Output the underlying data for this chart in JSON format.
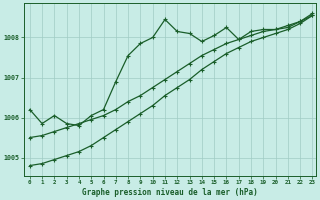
{
  "xlabel": "Graphe pression niveau de la mer (hPa)",
  "background_color": "#c8ece6",
  "grid_color": "#a0ccc4",
  "line_color": "#1a5e2a",
  "xlim": [
    -0.5,
    23.3
  ],
  "ylim": [
    1004.55,
    1008.85
  ],
  "yticks": [
    1005,
    1006,
    1007,
    1008
  ],
  "xticks": [
    0,
    1,
    2,
    3,
    4,
    5,
    6,
    7,
    8,
    9,
    10,
    11,
    12,
    13,
    14,
    15,
    16,
    17,
    18,
    19,
    20,
    21,
    22,
    23
  ],
  "line_wavy": [
    1006.2,
    1005.85,
    1006.05,
    1005.85,
    1005.8,
    1006.05,
    1006.2,
    1006.9,
    1007.55,
    1007.85,
    1008.0,
    1008.45,
    1008.15,
    1008.1,
    1007.9,
    1008.05,
    1008.25,
    1007.95,
    1008.15,
    1008.2,
    1008.2,
    1008.25,
    1008.4,
    1008.6
  ],
  "line_mid": [
    1005.5,
    1005.55,
    1005.65,
    1005.75,
    1005.85,
    1005.95,
    1006.05,
    1006.2,
    1006.4,
    1006.55,
    1006.75,
    1006.95,
    1007.15,
    1007.35,
    1007.55,
    1007.7,
    1007.85,
    1007.95,
    1008.05,
    1008.15,
    1008.2,
    1008.3,
    1008.4,
    1008.55
  ],
  "line_low": [
    1004.8,
    1004.85,
    1004.95,
    1005.05,
    1005.15,
    1005.3,
    1005.5,
    1005.7,
    1005.9,
    1006.1,
    1006.3,
    1006.55,
    1006.75,
    1006.95,
    1007.2,
    1007.4,
    1007.6,
    1007.75,
    1007.9,
    1008.0,
    1008.1,
    1008.2,
    1008.35,
    1008.55
  ]
}
